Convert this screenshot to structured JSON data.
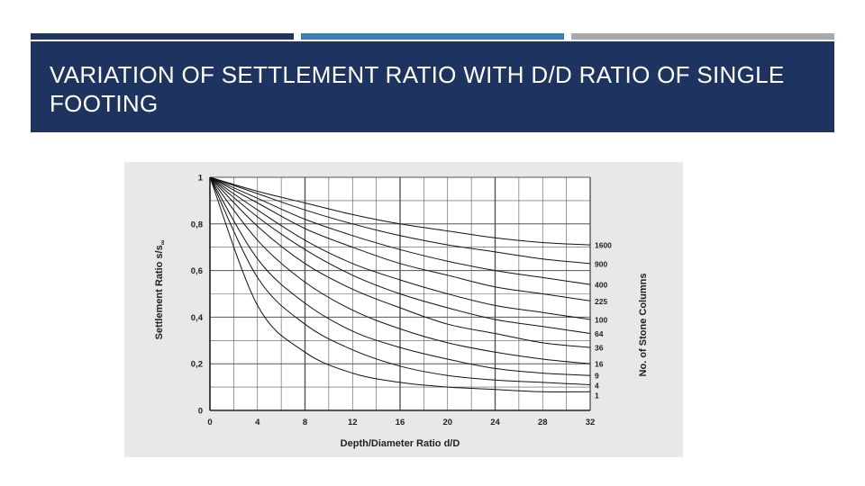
{
  "slide": {
    "title": "VARIATION OF SETTLEMENT RATIO WITH D/D RATIO OF SINGLE FOOTING"
  },
  "colors": {
    "title_band": "#1d3461",
    "bar_1": "#1d3461",
    "bar_2": "#3a7fb8",
    "bar_3": "#a6a8ab",
    "chart_background": "#e8e8e8",
    "plot_background": "#ffffff",
    "grid": "#555555",
    "curve": "#111111"
  },
  "chart_data": {
    "type": "line",
    "xlabel": "Depth/Diameter Ratio d/D",
    "ylabel": "Settlement Ratio s/s",
    "ylabel_subscript": "∞",
    "right_label": "No. of Stone Columns",
    "xlim": [
      0,
      32
    ],
    "ylim": [
      0,
      1
    ],
    "x_ticks": [
      "0",
      "4",
      "8",
      "12",
      "16",
      "20",
      "24",
      "28",
      "32"
    ],
    "y_ticks": [
      "0",
      "0,2",
      "0,4",
      "0,6",
      "0,8",
      "1"
    ],
    "grid": true,
    "series": [
      {
        "name": "1600",
        "x": [
          0,
          4,
          8,
          12,
          16,
          20,
          24,
          28,
          32
        ],
        "y": [
          1,
          0.94,
          0.89,
          0.84,
          0.8,
          0.77,
          0.74,
          0.72,
          0.71
        ]
      },
      {
        "name": "900",
        "x": [
          0,
          4,
          8,
          12,
          16,
          20,
          24,
          28,
          32
        ],
        "y": [
          1,
          0.93,
          0.86,
          0.8,
          0.75,
          0.71,
          0.68,
          0.65,
          0.63
        ]
      },
      {
        "name": "400",
        "x": [
          0,
          4,
          8,
          12,
          16,
          20,
          24,
          28,
          32
        ],
        "y": [
          1,
          0.91,
          0.82,
          0.75,
          0.69,
          0.64,
          0.6,
          0.57,
          0.54
        ]
      },
      {
        "name": "225",
        "x": [
          0,
          4,
          8,
          12,
          16,
          20,
          24,
          28,
          32
        ],
        "y": [
          1,
          0.89,
          0.78,
          0.7,
          0.63,
          0.58,
          0.53,
          0.5,
          0.47
        ]
      },
      {
        "name": "100",
        "x": [
          0,
          4,
          8,
          12,
          16,
          20,
          24,
          28,
          32
        ],
        "y": [
          1,
          0.86,
          0.73,
          0.63,
          0.56,
          0.5,
          0.45,
          0.42,
          0.39
        ]
      },
      {
        "name": "64",
        "x": [
          0,
          4,
          8,
          12,
          16,
          20,
          24,
          28,
          32
        ],
        "y": [
          1,
          0.83,
          0.69,
          0.58,
          0.5,
          0.44,
          0.39,
          0.36,
          0.33
        ]
      },
      {
        "name": "36",
        "x": [
          0,
          4,
          8,
          12,
          16,
          20,
          24,
          28,
          32
        ],
        "y": [
          1,
          0.79,
          0.63,
          0.52,
          0.44,
          0.37,
          0.33,
          0.29,
          0.27
        ]
      },
      {
        "name": "16",
        "x": [
          0,
          4,
          8,
          12,
          16,
          20,
          24,
          28,
          32
        ],
        "y": [
          1,
          0.73,
          0.55,
          0.43,
          0.35,
          0.29,
          0.25,
          0.22,
          0.2
        ]
      },
      {
        "name": "9",
        "x": [
          0,
          4,
          8,
          12,
          16,
          20,
          24,
          28,
          32
        ],
        "y": [
          1,
          0.65,
          0.46,
          0.34,
          0.27,
          0.22,
          0.18,
          0.16,
          0.15
        ]
      },
      {
        "name": "4",
        "x": [
          0,
          4,
          8,
          12,
          16,
          20,
          24,
          28,
          32
        ],
        "y": [
          1,
          0.57,
          0.37,
          0.26,
          0.19,
          0.15,
          0.13,
          0.12,
          0.11
        ]
      },
      {
        "name": "1",
        "x": [
          0,
          4,
          8,
          12,
          16,
          20,
          24,
          28,
          32
        ],
        "y": [
          1,
          0.45,
          0.25,
          0.16,
          0.12,
          0.1,
          0.09,
          0.08,
          0.08
        ]
      }
    ],
    "end_labels": [
      "1600",
      "900",
      "400",
      "225",
      "100",
      "64",
      "36",
      "16",
      "9",
      "4",
      "1"
    ]
  }
}
